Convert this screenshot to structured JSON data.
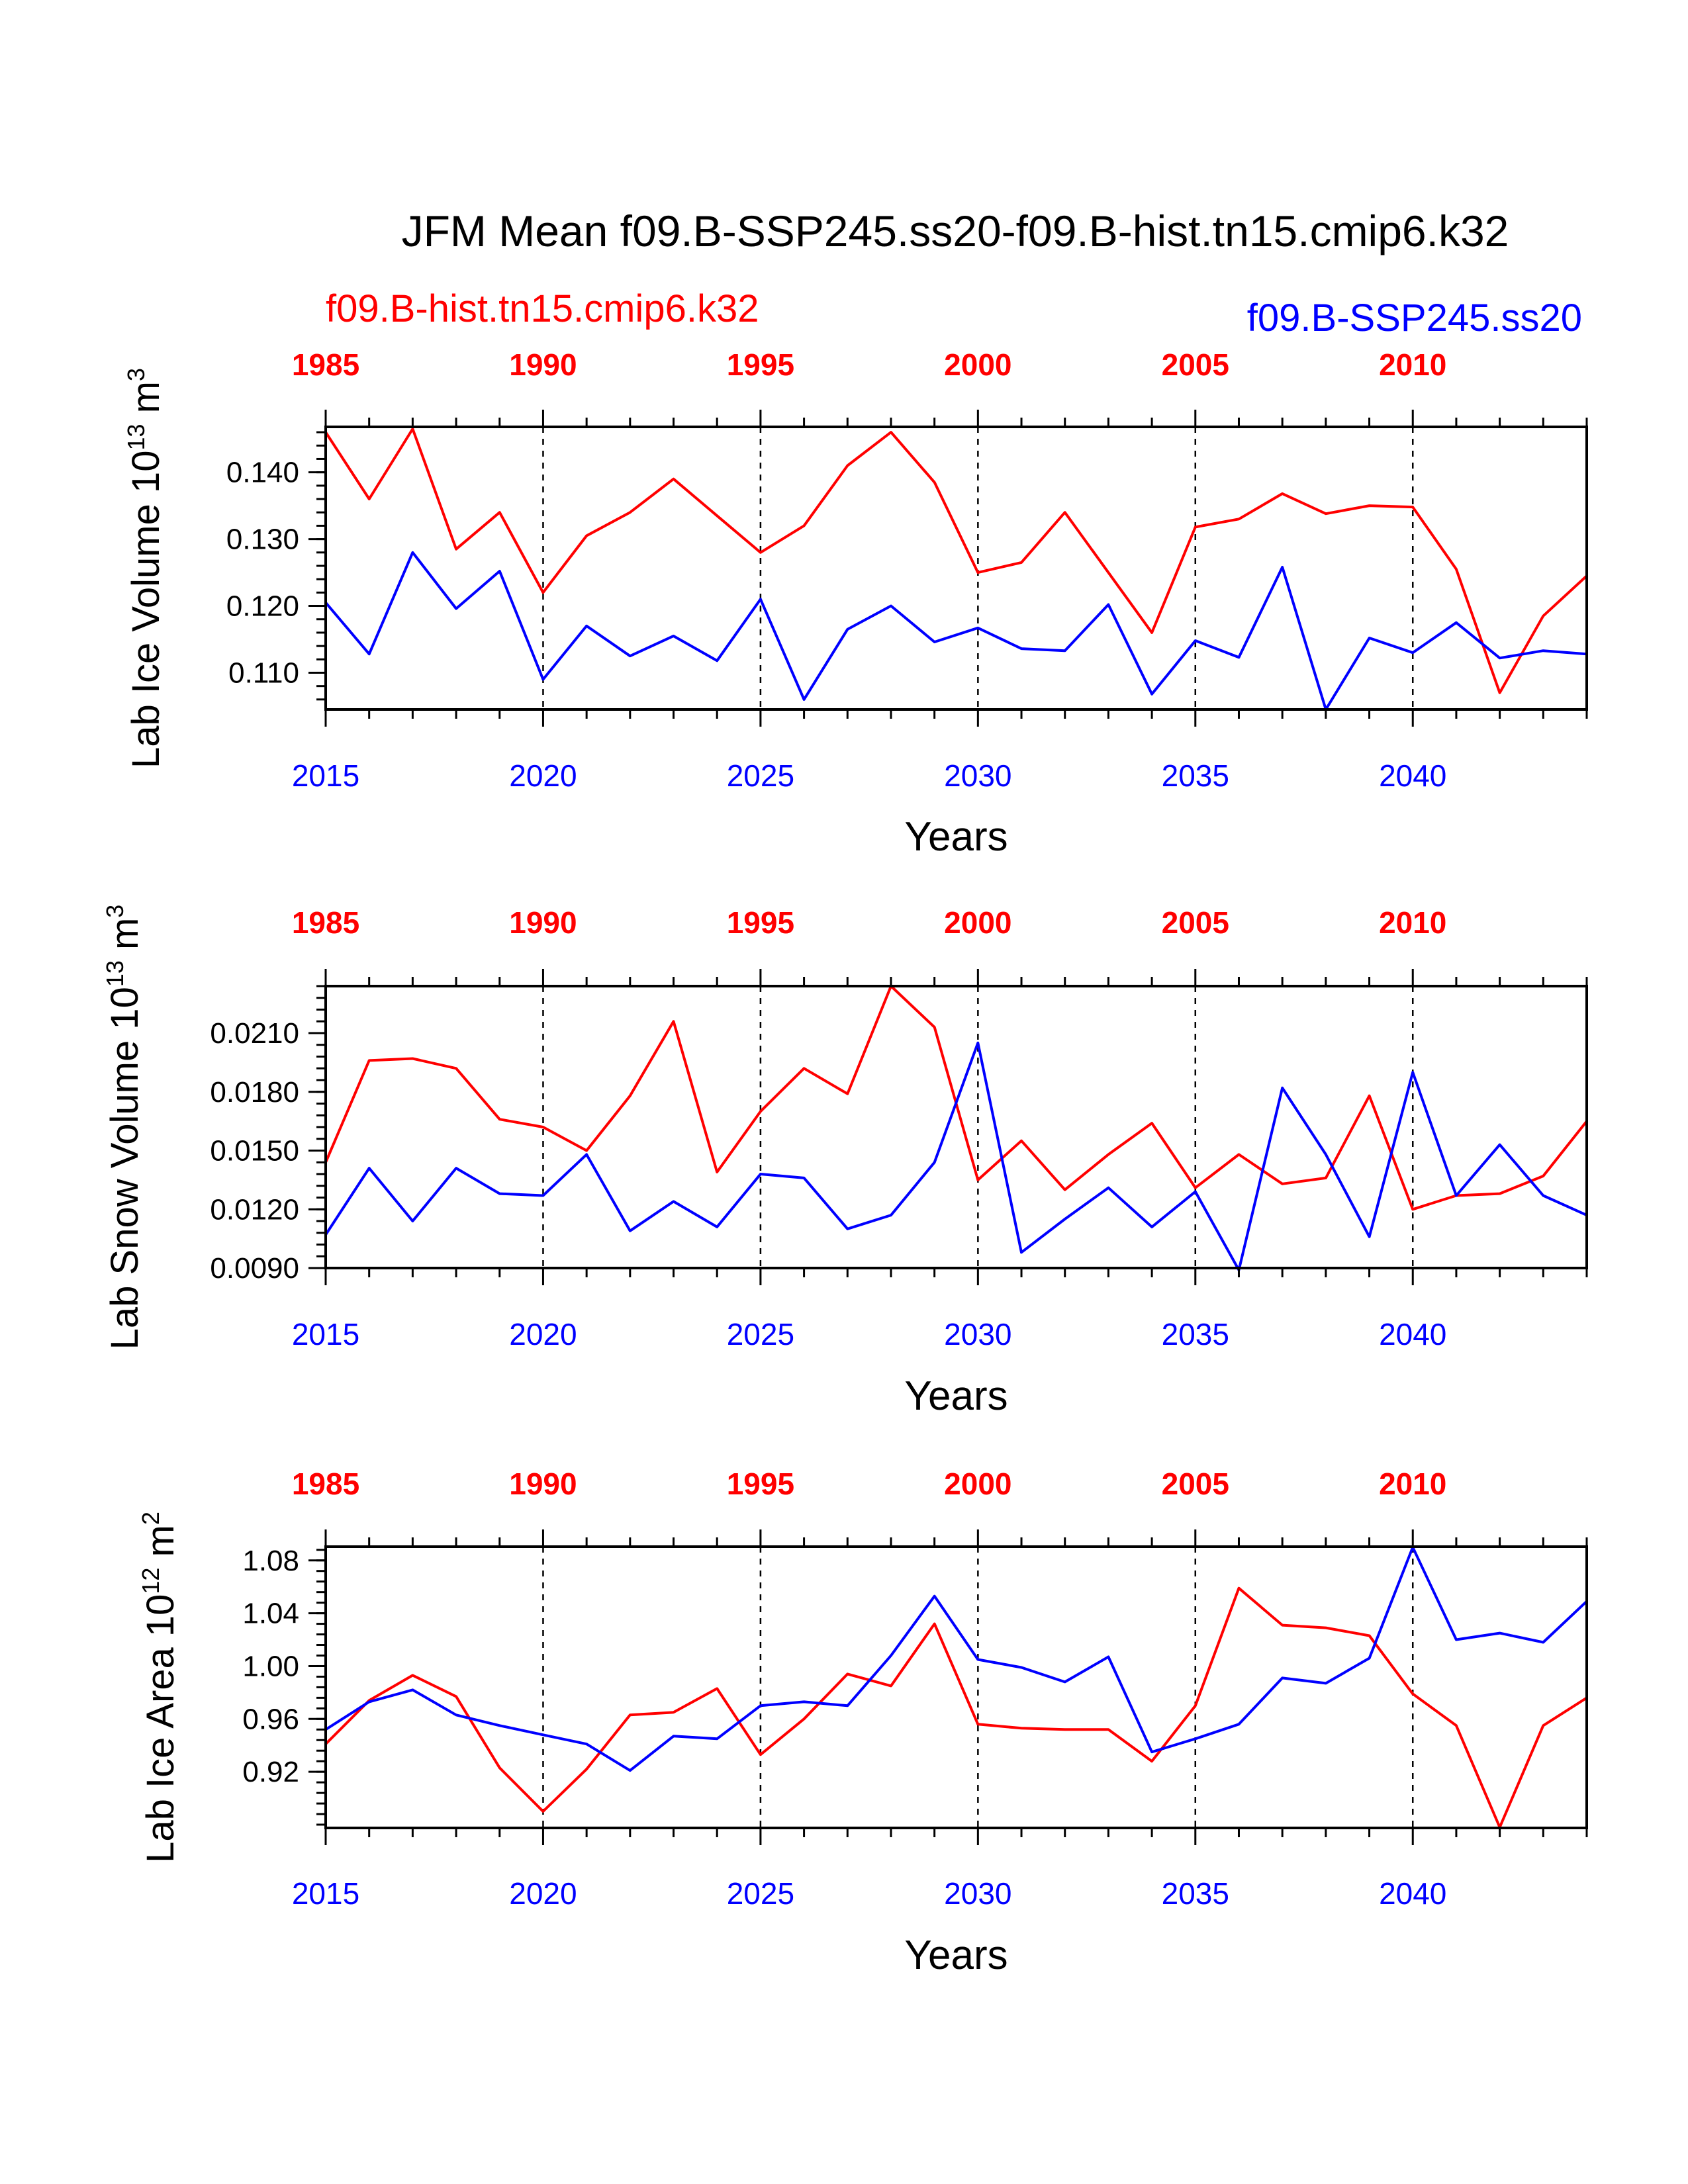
{
  "title": "JFM Mean f09.B-SSP245.ss20-f09.B-hist.tn15.cmip6.k32",
  "legend": {
    "hist": "f09.B-hist.tn15.cmip6.k32",
    "ssp": "f09.B-SSP245.ss20"
  },
  "colors": {
    "hist": "#ff0000",
    "ssp": "#0000ff",
    "axes": "#000000"
  },
  "top_axis_ticks": [
    "1985",
    "1990",
    "1995",
    "2000",
    "2005",
    "2010"
  ],
  "bottom_axis_ticks": [
    "2015",
    "2020",
    "2025",
    "2030",
    "2035",
    "2040"
  ],
  "chart_data": [
    {
      "type": "line",
      "title": "",
      "xlabel": "Years",
      "ylabel": {
        "base": "Lab Ice Volume 10",
        "exp": "13",
        "unit": " m",
        "unit_exp": "3"
      },
      "x_hist": [
        1985,
        1986,
        1987,
        1988,
        1989,
        1990,
        1991,
        1992,
        1993,
        1994,
        1995,
        1996,
        1997,
        1998,
        1999,
        2000,
        2001,
        2002,
        2003,
        2004,
        2005,
        2006,
        2007,
        2008,
        2009,
        2010,
        2011,
        2012,
        2013,
        2014
      ],
      "x_ssp": [
        2015,
        2016,
        2017,
        2018,
        2019,
        2020,
        2021,
        2022,
        2023,
        2024,
        2025,
        2026,
        2027,
        2028,
        2029,
        2030,
        2031,
        2032,
        2033,
        2034,
        2035,
        2036,
        2037,
        2038,
        2039,
        2040,
        2041,
        2042,
        2043,
        2044
      ],
      "xlim_ssp": [
        2015,
        2044
      ],
      "ylim": [
        0.1045,
        0.1468
      ],
      "yticks": [
        0.11,
        0.12,
        0.13,
        0.14
      ],
      "ytick_labels": [
        "0.110",
        "0.120",
        "0.130",
        "0.140"
      ],
      "yminor_step": 0.002,
      "series": [
        {
          "name": "f09.B-hist.tn15.cmip6.k32",
          "color": "#ff0000",
          "values": [
            0.146,
            0.136,
            0.1465,
            0.1285,
            0.134,
            0.122,
            0.1305,
            0.134,
            0.139,
            0.1335,
            0.128,
            0.132,
            0.141,
            0.146,
            0.1385,
            0.125,
            0.1265,
            0.134,
            0.125,
            0.116,
            0.1318,
            0.133,
            0.1368,
            0.1338,
            0.135,
            0.1348,
            0.1255,
            0.107,
            0.1185,
            0.1245
          ]
        },
        {
          "name": "f09.B-SSP245.ss20",
          "color": "#0000ff",
          "values": [
            0.1205,
            0.1128,
            0.128,
            0.1196,
            0.1252,
            0.109,
            0.117,
            0.1125,
            0.1155,
            0.1118,
            0.121,
            0.106,
            0.1165,
            0.12,
            0.1146,
            0.1167,
            0.1136,
            0.1133,
            0.1202,
            0.1068,
            0.1148,
            0.1123,
            0.1258,
            0.1045,
            0.1152,
            0.113,
            0.1175,
            0.1122,
            0.1133,
            0.1128
          ]
        }
      ]
    },
    {
      "type": "line",
      "title": "",
      "xlabel": "Years",
      "ylabel": {
        "base": "Lab Snow Volume 10",
        "exp": "13",
        "unit": " m",
        "unit_exp": "3"
      },
      "x_hist": [
        1985,
        1986,
        1987,
        1988,
        1989,
        1990,
        1991,
        1992,
        1993,
        1994,
        1995,
        1996,
        1997,
        1998,
        1999,
        2000,
        2001,
        2002,
        2003,
        2004,
        2005,
        2006,
        2007,
        2008,
        2009,
        2010,
        2011,
        2012,
        2013,
        2014
      ],
      "x_ssp": [
        2015,
        2016,
        2017,
        2018,
        2019,
        2020,
        2021,
        2022,
        2023,
        2024,
        2025,
        2026,
        2027,
        2028,
        2029,
        2030,
        2031,
        2032,
        2033,
        2034,
        2035,
        2036,
        2037,
        2038,
        2039,
        2040,
        2041,
        2042,
        2043,
        2044
      ],
      "xlim_ssp": [
        2015,
        2044
      ],
      "ylim": [
        0.009,
        0.0234
      ],
      "yticks": [
        0.009,
        0.012,
        0.015,
        0.018,
        0.021
      ],
      "ytick_labels": [
        "0.0090",
        "0.0120",
        "0.0150",
        "0.0180",
        "0.0210"
      ],
      "yminor_step": 0.0006,
      "series": [
        {
          "name": "f09.B-hist.tn15.cmip6.k32",
          "color": "#ff0000",
          "values": [
            0.0144,
            0.0196,
            0.0197,
            0.0192,
            0.0166,
            0.0162,
            0.015,
            0.0178,
            0.0216,
            0.0139,
            0.017,
            0.0192,
            0.0179,
            0.0234,
            0.0213,
            0.0135,
            0.0155,
            0.013,
            0.0148,
            0.0164,
            0.0131,
            0.0148,
            0.0133,
            0.0136,
            0.0178,
            0.012,
            0.0127,
            0.0128,
            0.0137,
            0.0165
          ]
        },
        {
          "name": "f09.B-SSP245.ss20",
          "color": "#0000ff",
          "values": [
            0.0107,
            0.0141,
            0.0114,
            0.0141,
            0.0128,
            0.0127,
            0.0148,
            0.0109,
            0.0124,
            0.0111,
            0.0138,
            0.0136,
            0.011,
            0.0117,
            0.0144,
            0.0205,
            0.0098,
            0.0115,
            0.0131,
            0.0111,
            0.0129,
            0.0089,
            0.0182,
            0.0148,
            0.0106,
            0.019,
            0.0127,
            0.0153,
            0.0127,
            0.0117
          ]
        }
      ]
    },
    {
      "type": "line",
      "title": "",
      "xlabel": "Years",
      "ylabel": {
        "base": "Lab Ice Area 10",
        "exp": "12",
        "unit": " m",
        "unit_exp": "2"
      },
      "x_hist": [
        1985,
        1986,
        1987,
        1988,
        1989,
        1990,
        1991,
        1992,
        1993,
        1994,
        1995,
        1996,
        1997,
        1998,
        1999,
        2000,
        2001,
        2002,
        2003,
        2004,
        2005,
        2006,
        2007,
        2008,
        2009,
        2010,
        2011,
        2012,
        2013,
        2014
      ],
      "x_ssp": [
        2015,
        2016,
        2017,
        2018,
        2019,
        2020,
        2021,
        2022,
        2023,
        2024,
        2025,
        2026,
        2027,
        2028,
        2029,
        2030,
        2031,
        2032,
        2033,
        2034,
        2035,
        2036,
        2037,
        2038,
        2039,
        2040,
        2041,
        2042,
        2043,
        2044
      ],
      "xlim_ssp": [
        2015,
        2044
      ],
      "ylim": [
        0.8775,
        1.0904
      ],
      "yticks": [
        0.92,
        0.96,
        1.0,
        1.04,
        1.08
      ],
      "ytick_labels": [
        "0.92",
        "0.96",
        "1.00",
        "1.04",
        "1.08"
      ],
      "yminor_step": 0.008,
      "series": [
        {
          "name": "f09.B-hist.tn15.cmip6.k32",
          "color": "#ff0000",
          "values": [
            0.941,
            0.974,
            0.993,
            0.977,
            0.923,
            0.89,
            0.922,
            0.963,
            0.965,
            0.983,
            0.933,
            0.96,
            0.994,
            0.985,
            1.032,
            0.956,
            0.953,
            0.952,
            0.952,
            0.928,
            0.97,
            1.059,
            1.031,
            1.029,
            1.023,
            0.979,
            0.955,
            0.878,
            0.955,
            0.976
          ]
        },
        {
          "name": "f09.B-SSP245.ss20",
          "color": "#0000ff",
          "values": [
            0.952,
            0.973,
            0.982,
            0.963,
            0.955,
            0.948,
            0.941,
            0.921,
            0.947,
            0.945,
            0.97,
            0.973,
            0.97,
            1.008,
            1.053,
            1.005,
            0.999,
            0.988,
            1.007,
            0.935,
            0.945,
            0.956,
            0.991,
            0.987,
            1.006,
            1.09,
            1.02,
            1.025,
            1.018,
            1.049
          ]
        }
      ]
    }
  ]
}
